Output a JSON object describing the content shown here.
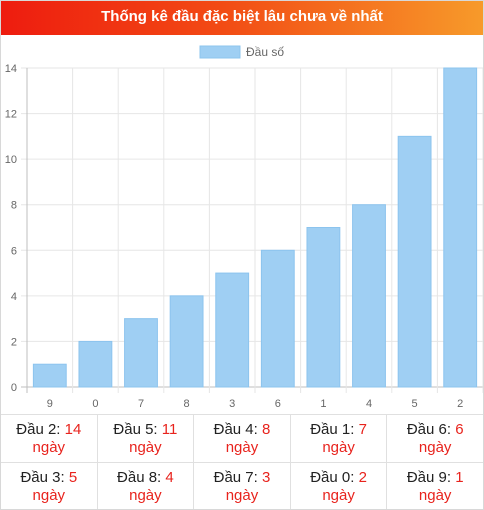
{
  "header": {
    "title": "Thống kê đầu đặc biệt lâu chưa về nhất"
  },
  "colors": {
    "bar": "#9fcff3",
    "bar_stroke": "#8cc4ee",
    "accent": "#e8231d"
  },
  "chart_data": {
    "type": "bar",
    "categories": [
      "9",
      "0",
      "7",
      "8",
      "3",
      "6",
      "1",
      "4",
      "5",
      "2"
    ],
    "series": [
      {
        "name": "Đầu số",
        "values": [
          1,
          2,
          3,
          4,
          5,
          6,
          7,
          8,
          11,
          14
        ]
      }
    ],
    "ylim": [
      0,
      14
    ],
    "yticks": [
      0,
      2,
      4,
      6,
      8,
      10,
      12,
      14
    ],
    "grid": true,
    "legend": "top-center"
  },
  "stats": {
    "unit": "ngày",
    "rows": [
      [
        {
          "label": "Đầu 2:",
          "value": "14"
        },
        {
          "label": "Đầu 5:",
          "value": "11"
        },
        {
          "label": "Đầu 4:",
          "value": "8"
        },
        {
          "label": "Đầu 1:",
          "value": "7"
        },
        {
          "label": "Đầu 6:",
          "value": "6"
        }
      ],
      [
        {
          "label": "Đầu 3:",
          "value": "5"
        },
        {
          "label": "Đầu 8:",
          "value": "4"
        },
        {
          "label": "Đầu 7:",
          "value": "3"
        },
        {
          "label": "Đầu 0:",
          "value": "2"
        },
        {
          "label": "Đầu 9:",
          "value": "1"
        }
      ]
    ]
  }
}
